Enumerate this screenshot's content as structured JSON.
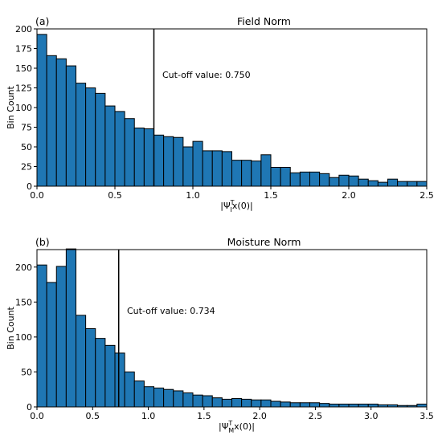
{
  "chart_data": [
    {
      "type": "bar",
      "panel_label": "(a)",
      "title": "Field Norm",
      "xlabel_main": "|Ψ",
      "xlabel_sub": "I",
      "xlabel_sup": "T",
      "xlabel_tail": "x(0)|",
      "ylabel": "Bin Count",
      "xlim": [
        0,
        2.5
      ],
      "ylim": [
        0,
        200
      ],
      "xticks": [
        "0.0",
        "0.5",
        "1.0",
        "1.5",
        "2.0",
        "2.5"
      ],
      "yticks": [
        "0",
        "25",
        "50",
        "75",
        "100",
        "125",
        "150",
        "175",
        "200"
      ],
      "bin_start": 0,
      "bin_width": 0.0625,
      "values": [
        193,
        166,
        162,
        153,
        131,
        125,
        118,
        102,
        95,
        86,
        74,
        73,
        65,
        63,
        62,
        50,
        57,
        45,
        45,
        44,
        33,
        33,
        32,
        40,
        24,
        24,
        17,
        18,
        18,
        16,
        11,
        14,
        13,
        9,
        7,
        5,
        9,
        6,
        6,
        6
      ],
      "cutoff": 0.75,
      "cutoff_text": "Cut-off value: 0.750"
    },
    {
      "type": "bar",
      "panel_label": "(b)",
      "title": "Moisture Norm",
      "xlabel_main": "|Ψ",
      "xlabel_sub": "M",
      "xlabel_sup": "T",
      "xlabel_tail": "x(0)|",
      "ylabel": "Bin Count",
      "xlim": [
        0,
        3.5
      ],
      "ylim": [
        0,
        225
      ],
      "xticks": [
        "0.0",
        "0.5",
        "1.0",
        "1.5",
        "2.0",
        "2.5",
        "3.0",
        "3.5"
      ],
      "yticks": [
        "0",
        "50",
        "100",
        "150",
        "200"
      ],
      "bin_start": 0,
      "bin_width": 0.0875,
      "values": [
        203,
        178,
        201,
        226,
        131,
        112,
        98,
        88,
        77,
        50,
        37,
        29,
        27,
        25,
        23,
        20,
        17,
        16,
        13,
        11,
        12,
        11,
        10,
        10,
        8,
        7,
        6,
        6,
        6,
        5,
        4,
        4,
        4,
        4,
        4,
        3,
        3,
        2,
        2,
        4
      ],
      "cutoff": 0.734,
      "cutoff_text": "Cut-off value: 0.734"
    }
  ]
}
